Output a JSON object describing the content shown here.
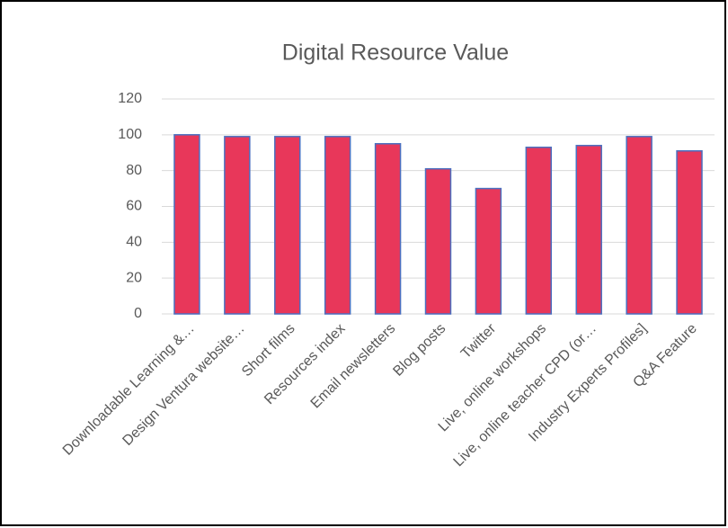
{
  "chart_data": {
    "type": "bar",
    "title": "Digital Resource Value",
    "categories": [
      "Downloadable Learning &…",
      "Design Ventura website…",
      "Short films",
      "Resources index",
      "Email newsletters",
      "Blog posts",
      "Twitter",
      "Live, online workshops",
      "Live, online teacher CPD (or…",
      "Industry Experts Profiles]",
      "Q&A Feature"
    ],
    "values": [
      100,
      99,
      99,
      99,
      95,
      81,
      70,
      93,
      94,
      99,
      91
    ],
    "color": "#e8375a",
    "edge_color": "#4a6fc0",
    "ylim": [
      0,
      120
    ],
    "yticks": [
      0,
      20,
      40,
      60,
      80,
      100,
      120
    ],
    "grid": true
  }
}
